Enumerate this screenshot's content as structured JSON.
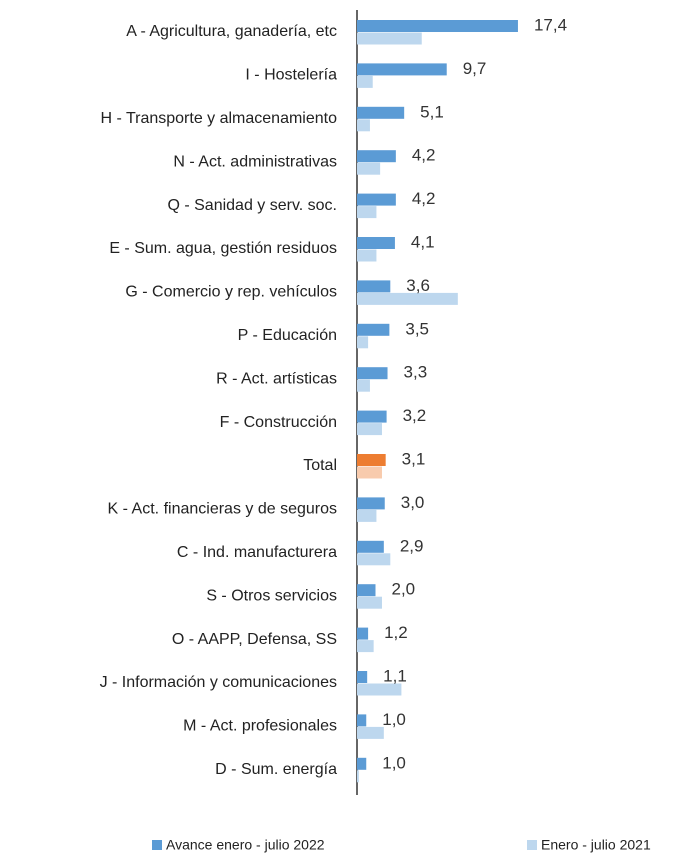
{
  "chart_data": {
    "type": "bar",
    "orientation": "horizontal",
    "categories": [
      "A - Agricultura, ganadería, etc",
      "I - Hostelería",
      "H - Transporte y almacenamiento",
      "N - Act. administrativas",
      "Q - Sanidad y serv. soc.",
      "E - Sum. agua, gestión residuos",
      "G - Comercio y rep. vehículos",
      "P - Educación",
      "R - Act. artísticas",
      "F - Construcción",
      "Total",
      "K - Act. financieras y de seguros",
      "C - Ind. manufacturera",
      "S - Otros servicios",
      "O - AAPP, Defensa, SS",
      "J - Información y comunicaciones",
      "M - Act. profesionales",
      "D - Sum. energía"
    ],
    "series": [
      {
        "name": "Avance enero - julio 2022",
        "color": "#5b9bd5",
        "highlight_color": "#ed7d31",
        "values": [
          17.4,
          9.7,
          5.1,
          4.2,
          4.2,
          4.1,
          3.6,
          3.5,
          3.3,
          3.2,
          3.1,
          3.0,
          2.9,
          2.0,
          1.2,
          1.1,
          1.0,
          1.0
        ],
        "value_labels": [
          "17,4",
          "9,7",
          "5,1",
          "4,2",
          "4,2",
          "4,1",
          "3,6",
          "3,5",
          "3,3",
          "3,2",
          "3,1",
          "3,0",
          "2,9",
          "2,0",
          "1,2",
          "1,1",
          "1,0",
          "1,0"
        ]
      },
      {
        "name": "Enero - julio 2021",
        "color": "#bdd7ee",
        "highlight_color": "#f8cbad",
        "values": [
          7.0,
          1.7,
          1.4,
          2.5,
          2.1,
          2.1,
          10.9,
          1.2,
          1.4,
          2.7,
          2.7,
          2.1,
          3.6,
          2.7,
          1.8,
          4.8,
          2.9,
          0.2
        ]
      }
    ],
    "highlight_category": "Total",
    "xlim": [
      0,
      20
    ]
  }
}
